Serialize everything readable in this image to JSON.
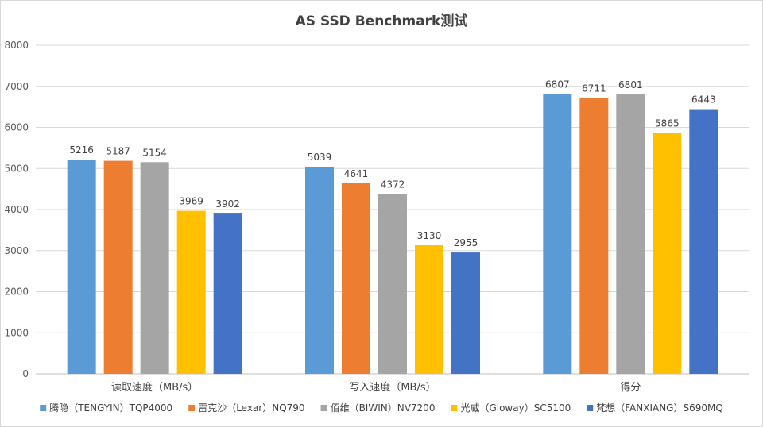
{
  "chart_data": {
    "type": "bar",
    "title": "AS SSD Benchmark测试",
    "xlabel": "",
    "ylabel": "",
    "ylim": [
      0,
      8000
    ],
    "yticks": [
      0,
      1000,
      2000,
      3000,
      4000,
      5000,
      6000,
      7000,
      8000
    ],
    "grid": true,
    "legend_position": "bottom",
    "categories": [
      "读取速度（MB/s）",
      "写入速度（MB/s）",
      "得分"
    ],
    "series": [
      {
        "name": "腾隐（TENGYIN）TQP4000",
        "color": "#5B9BD5",
        "values": [
          5216,
          5039,
          6807
        ]
      },
      {
        "name": "雷克沙（Lexar）NQ790",
        "color": "#ED7D31",
        "values": [
          5187,
          4641,
          6711
        ]
      },
      {
        "name": "佰维（BIWIN）NV7200",
        "color": "#A5A5A5",
        "values": [
          5154,
          4372,
          6801
        ]
      },
      {
        "name": "光威（Gloway）SC5100",
        "color": "#FFC000",
        "values": [
          3969,
          3130,
          5865
        ]
      },
      {
        "name": "梵想（FANXIANG）S690MQ",
        "color": "#4472C4",
        "values": [
          3902,
          2955,
          6443
        ]
      }
    ]
  }
}
